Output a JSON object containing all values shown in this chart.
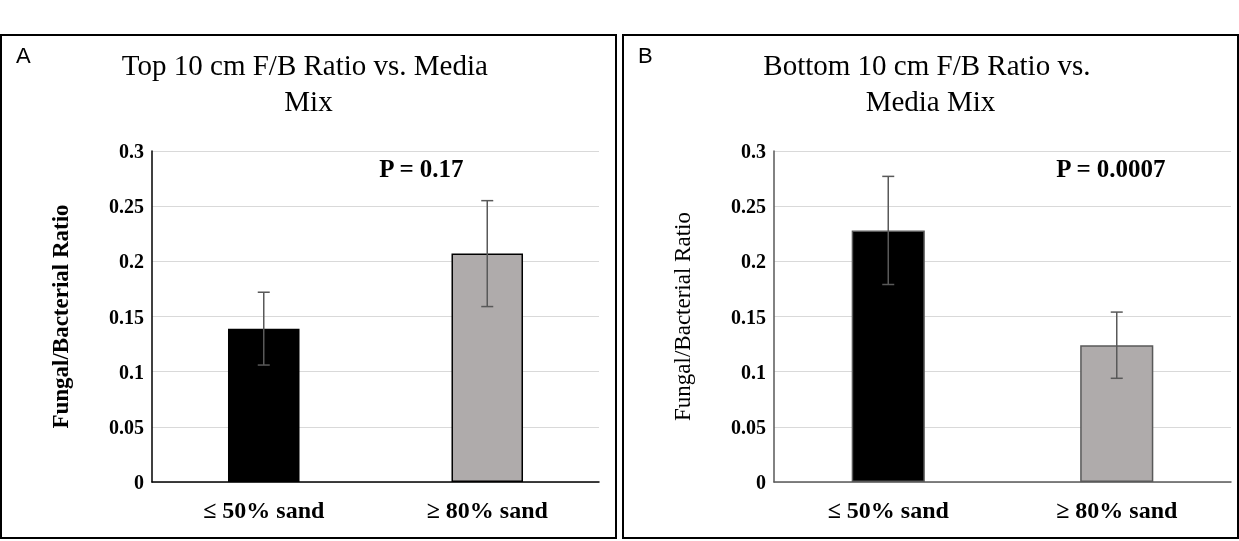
{
  "chart_data": [
    {
      "type": "bar",
      "title": "Top 10 cm F/B Ratio vs. Media Mix",
      "ylabel": "Fungal/Bacterial Ratio",
      "categories": [
        "≤ 50% sand",
        "≥ 80% sand"
      ],
      "values": [
        0.139,
        0.207
      ],
      "colors": [
        "#000000",
        "#afabab"
      ],
      "errors": [
        0.033,
        0.048
      ],
      "ylim": [
        0,
        0.3
      ],
      "yticks": [
        0,
        0.05,
        0.1,
        0.15,
        0.2,
        0.25,
        0.3
      ],
      "grid": "y",
      "annotations": [
        "A",
        "P = 0.17"
      ]
    },
    {
      "type": "bar",
      "title": "Bottom 10 cm F/B Ratio vs. Media Mix",
      "ylabel": "Fungal/Bacterial Ratio",
      "categories": [
        "≤ 50% sand",
        "≥ 80% sand"
      ],
      "values": [
        0.228,
        0.124
      ],
      "colors": [
        "#000000",
        "#afabab"
      ],
      "errors": [
        0.049,
        0.03
      ],
      "ylim": [
        0,
        0.3
      ],
      "yticks": [
        0,
        0.05,
        0.1,
        0.15,
        0.2,
        0.25,
        0.3
      ],
      "grid": "y",
      "annotations": [
        "B",
        "P = 0.0007"
      ]
    }
  ]
}
